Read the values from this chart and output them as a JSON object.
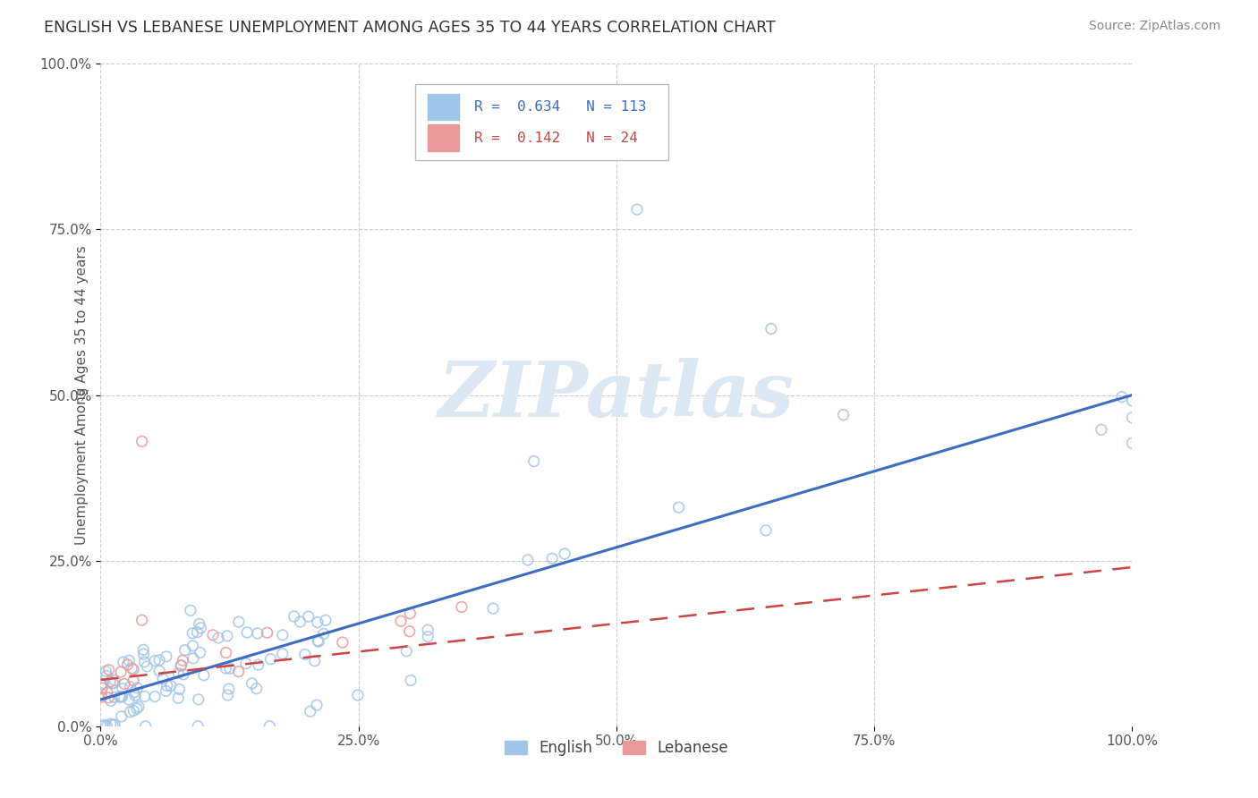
{
  "title": "ENGLISH VS LEBANESE UNEMPLOYMENT AMONG AGES 35 TO 44 YEARS CORRELATION CHART",
  "source": "Source: ZipAtlas.com",
  "ylabel": "Unemployment Among Ages 35 to 44 years",
  "watermark": "ZIPatlas",
  "xlim": [
    0.0,
    1.0
  ],
  "ylim": [
    0.0,
    1.0
  ],
  "xticks": [
    0.0,
    0.25,
    0.5,
    0.75,
    1.0
  ],
  "yticks": [
    0.0,
    0.25,
    0.5,
    0.75,
    1.0
  ],
  "xtick_labels": [
    "0.0%",
    "25.0%",
    "50.0%",
    "75.0%",
    "100.0%"
  ],
  "ytick_labels": [
    "0.0%",
    "25.0%",
    "50.0%",
    "75.0%",
    "100.0%"
  ],
  "english_R": 0.634,
  "english_N": 113,
  "lebanese_R": 0.142,
  "lebanese_N": 24,
  "english_marker_color": "#9fc5e8",
  "lebanese_marker_color": "#ea9999",
  "english_line_color": "#3d6cc0",
  "lebanese_line_color": "#cc4444",
  "background_color": "#ffffff",
  "grid_color": "#cccccc",
  "title_color": "#333333",
  "watermark_color": "#dce8f3",
  "legend_english_label": "English",
  "legend_lebanese_label": "Lebanese",
  "eng_slope": 0.46,
  "eng_intercept": 0.04,
  "leb_slope": 0.17,
  "leb_intercept": 0.07
}
